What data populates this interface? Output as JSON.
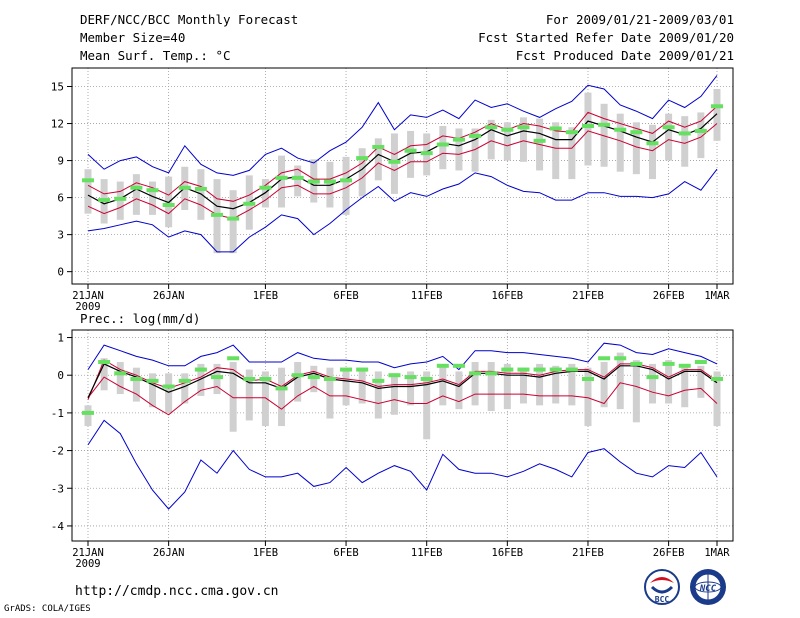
{
  "header": {
    "title": "DERF/NCC/BCC Monthly Forecast",
    "member_size": "Member Size=40",
    "variable": "Mean Surf. Temp.: °C",
    "for_range": "For 2009/01/21-2009/03/01",
    "started": "Fcst Started Refer Date 2009/01/20",
    "produced": "Fcst Produced Date 2009/01/21"
  },
  "prec_label": "Prec.: log(mm/d)",
  "url": "http://cmdp.ncc.cma.gov.cn",
  "credit": "GrADS: COLA/IGES",
  "logos": {
    "left": "BCC",
    "right": "NCC"
  },
  "colors": {
    "max_min": "#0000cc",
    "spread": "#cc0033",
    "mean": "#000000",
    "box": "#d0d0d0",
    "obs": "#66e060"
  },
  "chart_data": [
    {
      "type": "line",
      "title": "Mean Surf. Temp.: °C",
      "xlabel": "",
      "ylabel": "",
      "ylim": [
        -1,
        16.5
      ],
      "yticks": [
        0,
        3,
        6,
        9,
        12,
        15
      ],
      "grid": true,
      "x_tick_labels": [
        "21JAN",
        "26JAN",
        "1FEB",
        "6FEB",
        "11FEB",
        "16FEB",
        "21FEB",
        "26FEB",
        "1MAR"
      ],
      "x_tick_days": [
        0,
        5,
        11,
        16,
        21,
        26,
        31,
        36,
        39
      ],
      "year_label": "2009",
      "series": [
        {
          "name": "max",
          "values": [
            9.5,
            8.3,
            9.0,
            9.3,
            8.5,
            8.0,
            10.2,
            8.7,
            8.0,
            7.8,
            8.2,
            9.5,
            10.0,
            9.2,
            8.8,
            9.8,
            10.5,
            11.7,
            13.7,
            11.5,
            12.7,
            12.5,
            13.1,
            12.4,
            13.9,
            13.3,
            13.6,
            13.0,
            12.5,
            13.2,
            13.8,
            15.1,
            14.8,
            13.5,
            13.0,
            12.4,
            13.9,
            13.3,
            14.2,
            15.9
          ]
        },
        {
          "name": "upper",
          "values": [
            7.0,
            6.3,
            6.5,
            7.2,
            6.8,
            6.2,
            7.3,
            6.9,
            5.9,
            5.7,
            6.2,
            7.0,
            8.0,
            8.3,
            7.5,
            7.5,
            8.0,
            8.8,
            10.1,
            9.5,
            10.2,
            10.3,
            11.0,
            10.8,
            11.3,
            12.0,
            11.5,
            12.0,
            11.8,
            11.4,
            11.3,
            12.9,
            12.4,
            12.0,
            11.6,
            11.2,
            12.2,
            11.7,
            12.2,
            13.4
          ]
        },
        {
          "name": "mean",
          "values": [
            6.2,
            5.5,
            5.9,
            6.7,
            6.1,
            5.6,
            6.8,
            6.3,
            5.3,
            5.1,
            5.6,
            6.4,
            7.5,
            7.7,
            7.0,
            7.0,
            7.5,
            8.3,
            9.5,
            8.9,
            9.6,
            9.7,
            10.4,
            10.2,
            10.7,
            11.5,
            11.0,
            11.4,
            11.2,
            10.7,
            10.7,
            12.2,
            11.8,
            11.4,
            10.9,
            10.5,
            11.5,
            11.1,
            11.6,
            12.8
          ]
        },
        {
          "name": "lower",
          "values": [
            5.3,
            4.7,
            5.2,
            5.9,
            5.4,
            4.7,
            5.9,
            5.4,
            4.6,
            4.3,
            5.0,
            5.8,
            6.8,
            7.0,
            6.3,
            6.3,
            6.8,
            7.6,
            8.8,
            8.2,
            8.9,
            8.9,
            9.6,
            9.5,
            9.9,
            10.6,
            10.2,
            10.6,
            10.3,
            10.0,
            10.0,
            11.4,
            11.0,
            10.6,
            10.1,
            9.8,
            10.7,
            10.4,
            10.9,
            12.0
          ]
        },
        {
          "name": "min",
          "values": [
            3.3,
            3.5,
            3.8,
            4.1,
            3.8,
            2.8,
            3.3,
            3.0,
            1.6,
            1.6,
            2.8,
            3.6,
            4.6,
            4.3,
            3.0,
            3.9,
            5.0,
            6.0,
            6.9,
            5.7,
            6.4,
            6.1,
            6.7,
            7.1,
            8.0,
            7.7,
            7.0,
            6.5,
            6.4,
            5.8,
            5.8,
            6.4,
            6.4,
            6.1,
            6.1,
            6.0,
            6.3,
            7.3,
            6.6,
            8.3
          ]
        },
        {
          "name": "box_top",
          "values": [
            8.3,
            7.5,
            7.3,
            7.9,
            7.3,
            7.7,
            8.5,
            8.3,
            7.5,
            6.6,
            7.8,
            7.5,
            9.4,
            8.6,
            9.1,
            8.9,
            9.3,
            10.0,
            10.8,
            11.2,
            11.4,
            11.2,
            11.8,
            11.6,
            11.6,
            12.3,
            12.1,
            12.5,
            12.4,
            12.1,
            11.7,
            14.5,
            13.6,
            12.8,
            12.1,
            11.9,
            12.8,
            12.6,
            12.9,
            14.8
          ]
        },
        {
          "name": "box_bottom",
          "values": [
            4.7,
            3.9,
            4.2,
            4.6,
            4.6,
            3.6,
            5.0,
            4.2,
            1.5,
            1.5,
            3.4,
            5.2,
            5.2,
            6.1,
            5.6,
            5.2,
            4.6,
            6.1,
            7.4,
            6.3,
            7.6,
            7.8,
            8.3,
            8.2,
            8.1,
            9.1,
            9.0,
            8.9,
            8.2,
            7.5,
            7.5,
            8.6,
            8.5,
            8.1,
            7.9,
            7.5,
            9.0,
            8.5,
            9.2,
            10.6
          ]
        },
        {
          "name": "observed",
          "values": [
            7.4,
            5.8,
            5.9,
            6.8,
            6.6,
            5.4,
            6.8,
            6.7,
            4.6,
            4.3,
            5.5,
            6.8,
            7.6,
            7.6,
            7.3,
            7.3,
            7.4,
            9.2,
            10.1,
            8.9,
            9.8,
            9.6,
            10.3,
            10.7,
            11.0,
            11.7,
            11.5,
            11.7,
            10.6,
            11.6,
            11.3,
            11.8,
            11.9,
            11.5,
            11.3,
            10.4,
            11.7,
            11.2,
            11.4,
            13.4
          ]
        }
      ]
    },
    {
      "type": "line",
      "title": "Prec.: log(mm/d)",
      "xlabel": "",
      "ylabel": "",
      "ylim": [
        -4.4,
        1.2
      ],
      "yticks": [
        -4,
        -3,
        -2,
        -1,
        0,
        1
      ],
      "grid": true,
      "x_tick_labels": [
        "21JAN",
        "26JAN",
        "1FEB",
        "6FEB",
        "11FEB",
        "16FEB",
        "21FEB",
        "26FEB",
        "1MAR"
      ],
      "x_tick_days": [
        0,
        5,
        11,
        16,
        21,
        26,
        31,
        36,
        39
      ],
      "year_label": "2009",
      "series": [
        {
          "name": "max",
          "values": [
            0.15,
            0.8,
            0.65,
            0.5,
            0.4,
            0.25,
            0.25,
            0.5,
            0.6,
            0.8,
            0.35,
            0.35,
            0.35,
            0.6,
            0.45,
            0.4,
            0.4,
            0.35,
            0.35,
            0.2,
            0.3,
            0.35,
            0.5,
            0.15,
            0.65,
            0.65,
            0.6,
            0.6,
            0.55,
            0.5,
            0.45,
            0.35,
            0.85,
            0.8,
            0.6,
            0.55,
            0.7,
            0.6,
            0.5,
            0.3
          ]
        },
        {
          "name": "upper",
          "values": [
            -0.65,
            0.4,
            0.15,
            0.0,
            -0.2,
            -0.35,
            -0.2,
            -0.05,
            0.2,
            0.15,
            -0.15,
            -0.1,
            -0.3,
            0.0,
            0.1,
            -0.05,
            -0.1,
            -0.15,
            -0.3,
            -0.25,
            -0.25,
            -0.2,
            -0.1,
            -0.25,
            0.1,
            0.1,
            0.05,
            0.05,
            0.0,
            0.1,
            0.15,
            0.15,
            -0.05,
            0.3,
            0.3,
            0.2,
            -0.05,
            0.15,
            0.15,
            -0.15
          ]
        },
        {
          "name": "mean",
          "values": [
            -0.6,
            0.3,
            0.1,
            -0.05,
            -0.25,
            -0.45,
            -0.3,
            -0.1,
            0.1,
            0.05,
            -0.2,
            -0.2,
            -0.35,
            -0.05,
            0.05,
            -0.1,
            -0.15,
            -0.2,
            -0.35,
            -0.3,
            -0.3,
            -0.25,
            -0.15,
            -0.3,
            0.05,
            0.05,
            0.0,
            0.0,
            -0.05,
            0.05,
            0.1,
            0.1,
            -0.1,
            0.25,
            0.25,
            0.15,
            -0.1,
            0.1,
            0.1,
            -0.2
          ]
        },
        {
          "name": "lower",
          "values": [
            -0.6,
            -0.05,
            -0.3,
            -0.5,
            -0.8,
            -1.05,
            -0.7,
            -0.4,
            -0.3,
            -0.6,
            -0.6,
            -0.6,
            -0.9,
            -0.55,
            -0.3,
            -0.55,
            -0.55,
            -0.65,
            -0.75,
            -0.65,
            -0.75,
            -0.75,
            -0.55,
            -0.7,
            -0.5,
            -0.5,
            -0.5,
            -0.5,
            -0.55,
            -0.55,
            -0.55,
            -0.6,
            -0.75,
            -0.2,
            -0.3,
            -0.45,
            -0.55,
            -0.4,
            -0.35,
            -0.75
          ]
        },
        {
          "name": "min",
          "values": [
            -1.85,
            -1.2,
            -1.55,
            -2.35,
            -3.05,
            -3.55,
            -3.1,
            -2.25,
            -2.6,
            -2.0,
            -2.5,
            -2.7,
            -2.7,
            -2.6,
            -2.95,
            -2.85,
            -2.45,
            -2.85,
            -2.6,
            -2.4,
            -2.55,
            -3.05,
            -2.1,
            -2.5,
            -2.6,
            -2.6,
            -2.7,
            -2.55,
            -2.35,
            -2.5,
            -2.7,
            -2.05,
            -1.95,
            -2.3,
            -2.6,
            -2.7,
            -2.4,
            -2.45,
            -2.05,
            -2.7
          ]
        },
        {
          "name": "box_top",
          "values": [
            -0.8,
            0.45,
            0.35,
            0.2,
            0.05,
            0.05,
            0.05,
            0.3,
            0.3,
            0.35,
            0.15,
            0.1,
            0.2,
            0.35,
            0.25,
            0.2,
            0.15,
            0.2,
            0.1,
            0.05,
            0.1,
            0.1,
            0.25,
            0.1,
            0.35,
            0.35,
            0.3,
            0.2,
            0.3,
            0.25,
            0.3,
            0.2,
            0.35,
            0.6,
            0.4,
            0.3,
            0.4,
            0.3,
            0.25,
            0.1
          ]
        },
        {
          "name": "box_bottom",
          "values": [
            -1.35,
            -0.4,
            -0.5,
            -0.7,
            -0.85,
            -1.0,
            -0.75,
            -0.55,
            -0.5,
            -1.5,
            -1.2,
            -1.35,
            -1.35,
            -0.7,
            -0.45,
            -1.15,
            -0.8,
            -0.75,
            -1.15,
            -1.05,
            -0.8,
            -1.7,
            -0.8,
            -0.9,
            -0.8,
            -0.95,
            -0.9,
            -0.75,
            -0.8,
            -0.75,
            -0.8,
            -1.35,
            -0.85,
            -0.9,
            -1.25,
            -0.75,
            -0.75,
            -0.85,
            -0.6,
            -1.35
          ]
        },
        {
          "name": "observed",
          "values": [
            -1.0,
            0.35,
            0.05,
            -0.1,
            -0.15,
            -0.3,
            -0.15,
            0.15,
            -0.05,
            0.45,
            -0.1,
            -0.1,
            -0.35,
            0.0,
            -0.05,
            -0.1,
            0.15,
            0.15,
            -0.15,
            0.0,
            -0.05,
            -0.1,
            0.25,
            0.25,
            0.05,
            0.05,
            0.15,
            0.15,
            0.15,
            0.15,
            0.15,
            -0.1,
            0.45,
            0.45,
            0.3,
            -0.05,
            0.3,
            0.25,
            0.35,
            -0.1
          ]
        }
      ]
    }
  ]
}
